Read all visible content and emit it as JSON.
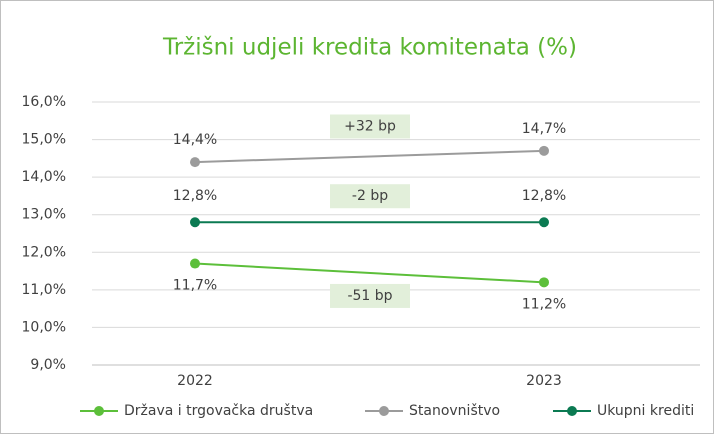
{
  "chart_data": {
    "type": "line",
    "title": "Tržišni udjeli kredita komitenata (%)",
    "categories": [
      "2022",
      "2023"
    ],
    "series": [
      {
        "name": "Država i trgovačka društva",
        "color": "#5cbf3a",
        "values": [
          11.7,
          11.2
        ],
        "value_labels": [
          "11,7%",
          "11,2%"
        ]
      },
      {
        "name": "Stanovništvo",
        "color": "#9b9b9b",
        "values": [
          14.4,
          14.7
        ],
        "value_labels": [
          "14,4%",
          "14,7%"
        ]
      },
      {
        "name": "Ukupni krediti",
        "color": "#0b7a52",
        "values": [
          12.8,
          12.8
        ],
        "value_labels": [
          "12,8%",
          "12,8%"
        ]
      }
    ],
    "annotations": [
      "+32 bp",
      "-2 bp",
      "-51 bp"
    ],
    "ylim": [
      9,
      16
    ],
    "yticks": [
      {
        "value": 9,
        "label": "9,0%"
      },
      {
        "value": 10,
        "label": "10,0%"
      },
      {
        "value": 11,
        "label": "11,0%"
      },
      {
        "value": 12,
        "label": "12,0%"
      },
      {
        "value": 13,
        "label": "13,0%"
      },
      {
        "value": 14,
        "label": "14,0%"
      },
      {
        "value": 15,
        "label": "15,0%"
      },
      {
        "value": 16,
        "label": "16,0%"
      }
    ],
    "grid": true,
    "legend": "bottom"
  }
}
